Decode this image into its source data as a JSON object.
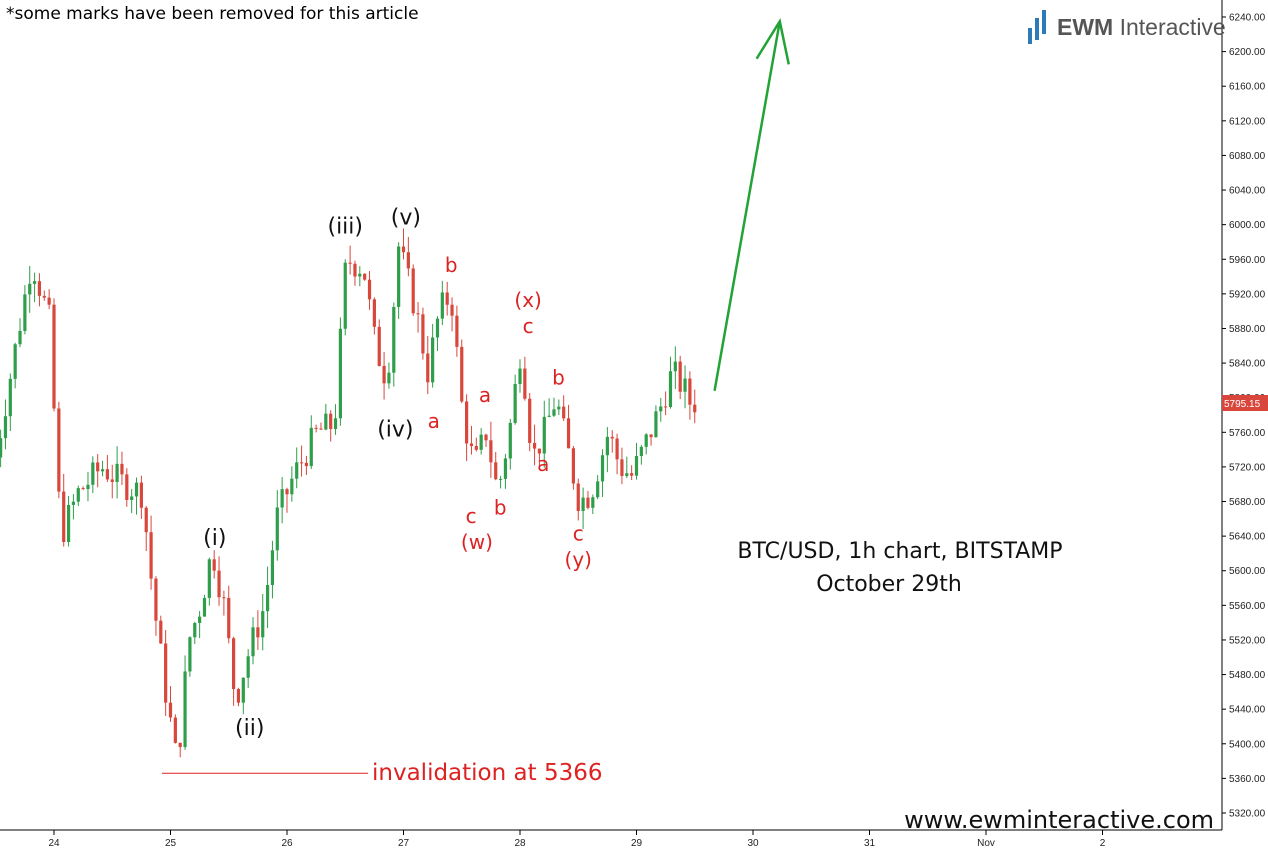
{
  "header": {
    "note": "*some marks have been removed for this article",
    "brand_prefix": "EWM",
    "brand_suffix": " Interactive"
  },
  "chart_data": {
    "type": "candlestick",
    "instrument": "BTC/USD, 1h chart, BITSTAMP",
    "date": "October 29th",
    "watermark": "www.ewminteractive.com",
    "y_axis": {
      "ylim": [
        5300,
        6260
      ],
      "ticks": [
        "5320.00",
        "5360.00",
        "5400.00",
        "5440.00",
        "5480.00",
        "5520.00",
        "5560.00",
        "5600.00",
        "5640.00",
        "5680.00",
        "5720.00",
        "5760.00",
        "5800.00",
        "5840.00",
        "5880.00",
        "5920.00",
        "5960.00",
        "6000.00",
        "6040.00",
        "6080.00",
        "6120.00",
        "6160.00",
        "6200.00",
        "6240.00"
      ]
    },
    "x_axis": {
      "ticks": [
        "24",
        "25",
        "26",
        "27",
        "28",
        "29",
        "30",
        "31",
        "Nov",
        "2"
      ]
    },
    "last_price": "5795.15",
    "invalidation": {
      "label": "invalidation at 5366",
      "level": 5366
    },
    "colors": {
      "up": "#2e9e4a",
      "down": "#d8463c",
      "wave_black": "#111111",
      "wave_red": "#dd2222",
      "arrow": "#22a336",
      "brand_bar": "#2d7ab8",
      "last_price_bg": "#d8463c"
    },
    "path_points": [
      {
        "day": 23.5,
        "price": 5700
      },
      {
        "day": 23.7,
        "price": 5850
      },
      {
        "day": 23.85,
        "price": 5960
      },
      {
        "day": 24.0,
        "price": 5890
      },
      {
        "day": 24.1,
        "price": 5640
      },
      {
        "day": 24.25,
        "price": 5690
      },
      {
        "day": 24.45,
        "price": 5720
      },
      {
        "day": 24.65,
        "price": 5700
      },
      {
        "day": 24.8,
        "price": 5690
      },
      {
        "day": 24.9,
        "price": 5560
      },
      {
        "day": 25.0,
        "price": 5460
      },
      {
        "day": 25.1,
        "price": 5375
      },
      {
        "day": 25.2,
        "price": 5520
      },
      {
        "day": 25.3,
        "price": 5560
      },
      {
        "day": 25.4,
        "price": 5625
      },
      {
        "day": 25.5,
        "price": 5560
      },
      {
        "day": 25.6,
        "price": 5450
      },
      {
        "day": 25.7,
        "price": 5500
      },
      {
        "day": 25.85,
        "price": 5560
      },
      {
        "day": 25.95,
        "price": 5660
      },
      {
        "day": 26.1,
        "price": 5710
      },
      {
        "day": 26.3,
        "price": 5760
      },
      {
        "day": 26.45,
        "price": 5770
      },
      {
        "day": 26.55,
        "price": 5960
      },
      {
        "day": 26.7,
        "price": 5950
      },
      {
        "day": 26.8,
        "price": 5860
      },
      {
        "day": 26.9,
        "price": 5820
      },
      {
        "day": 27.0,
        "price": 5975
      },
      {
        "day": 27.15,
        "price": 5900
      },
      {
        "day": 27.25,
        "price": 5830
      },
      {
        "day": 27.35,
        "price": 5900
      },
      {
        "day": 27.45,
        "price": 5920
      },
      {
        "day": 27.55,
        "price": 5780
      },
      {
        "day": 27.65,
        "price": 5720
      },
      {
        "day": 27.75,
        "price": 5760
      },
      {
        "day": 27.85,
        "price": 5690
      },
      {
        "day": 27.95,
        "price": 5760
      },
      {
        "day": 28.05,
        "price": 5860
      },
      {
        "day": 28.15,
        "price": 5730
      },
      {
        "day": 28.25,
        "price": 5760
      },
      {
        "day": 28.35,
        "price": 5800
      },
      {
        "day": 28.45,
        "price": 5740
      },
      {
        "day": 28.55,
        "price": 5680
      },
      {
        "day": 28.65,
        "price": 5690
      },
      {
        "day": 28.8,
        "price": 5760
      },
      {
        "day": 28.9,
        "price": 5720
      },
      {
        "day": 29.0,
        "price": 5710
      },
      {
        "day": 29.1,
        "price": 5740
      },
      {
        "day": 29.25,
        "price": 5790
      },
      {
        "day": 29.35,
        "price": 5830
      },
      {
        "day": 29.45,
        "price": 5810
      },
      {
        "day": 29.5,
        "price": 5795
      }
    ],
    "wave_labels_black": [
      {
        "text": "(i)",
        "day": 25.38,
        "price": 5630
      },
      {
        "text": "(ii)",
        "day": 25.68,
        "price": 5410
      },
      {
        "text": "(iii)",
        "day": 26.5,
        "price": 5990
      },
      {
        "text": "(iv)",
        "day": 26.93,
        "price": 5755
      },
      {
        "text": "(v)",
        "day": 27.02,
        "price": 6000
      }
    ],
    "wave_labels_red": [
      {
        "text": "a",
        "day": 27.26,
        "price": 5765
      },
      {
        "text": "b",
        "day": 27.41,
        "price": 5945
      },
      {
        "text": "c",
        "day": 27.58,
        "price": 5655
      },
      {
        "text": "(w)",
        "day": 27.63,
        "price": 5625
      },
      {
        "text": "a",
        "day": 27.7,
        "price": 5795
      },
      {
        "text": "b",
        "day": 27.83,
        "price": 5665
      },
      {
        "text": "(x)",
        "day": 28.07,
        "price": 5905
      },
      {
        "text": "c",
        "day": 28.07,
        "price": 5875
      },
      {
        "text": "b",
        "day": 28.33,
        "price": 5815
      },
      {
        "text": "a",
        "day": 28.2,
        "price": 5715
      },
      {
        "text": "c",
        "day": 28.5,
        "price": 5635
      },
      {
        "text": "(y)",
        "day": 28.5,
        "price": 5605
      }
    ],
    "arrow": {
      "from": {
        "day": 29.67,
        "price": 5808
      },
      "to": {
        "day": 30.23,
        "price": 6235
      }
    }
  }
}
